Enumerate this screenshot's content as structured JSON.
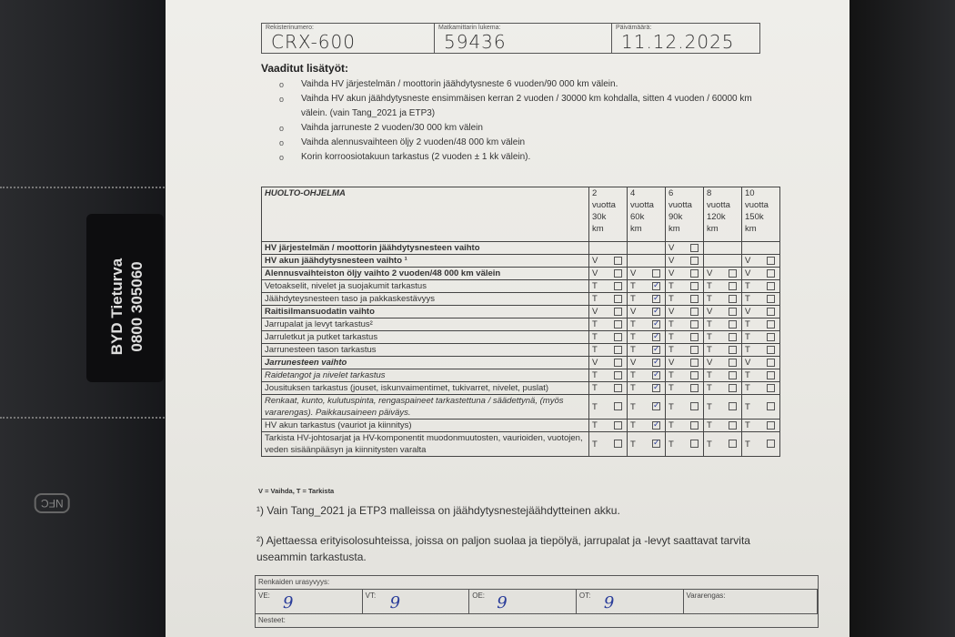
{
  "background": {
    "card": {
      "brand": "BYD Tieturva",
      "phone": "0800 305060"
    },
    "nfc_label": "NFC"
  },
  "header": {
    "reg": {
      "label": "Rekisterinumero:",
      "value": "CRX-600"
    },
    "odometer": {
      "label": "Matkamittarin lukema:",
      "value": "59436"
    },
    "date": {
      "label": "Päivämäärä:",
      "value": "11.12.2025"
    }
  },
  "required": {
    "title": "Vaaditut lisätyöt:",
    "items": [
      "Vaihda HV järjestelmän / moottorin jäähdytysneste 6 vuoden/90 000 km välein.",
      "Vaihda HV akun jäähdytysneste ensimmäisen kerran 2 vuoden / 30000 km kohdalla, sitten 4 vuoden / 60000 km välein. (vain Tang_2021 ja ETP3)",
      "Vaihda jarruneste 2 vuoden/30 000 km välein",
      "Vaihda alennusvaihteen öljy 2 vuoden/48 000 km välein",
      "Korin korroosiotakuun tarkastus (2 vuoden ± 1 kk välein)."
    ]
  },
  "program": {
    "title": "HUOLTO-OHJELMA",
    "columns": [
      [
        "2",
        "vuotta",
        "30k",
        "km"
      ],
      [
        "4",
        "vuotta",
        "60k",
        "km"
      ],
      [
        "6",
        "vuotta",
        "90k",
        "km"
      ],
      [
        "8",
        "vuotta",
        "120k",
        "km"
      ],
      [
        "10",
        "vuotta",
        "150k",
        "km"
      ]
    ],
    "rows": [
      {
        "label": "HV järjestelmän / moottorin jäähdytysnesteen vaihto",
        "bold": true,
        "codes": [
          "",
          "",
          "V",
          "",
          ""
        ],
        "checked": [
          false,
          false,
          false,
          false,
          false
        ]
      },
      {
        "label": "HV akun jäähdytysnesteen vaihto ¹",
        "bold": true,
        "codes": [
          "V",
          "",
          "V",
          "",
          "V"
        ],
        "checked": [
          false,
          false,
          false,
          false,
          false
        ]
      },
      {
        "label": "Alennusvaihteiston öljy vaihto 2 vuoden/48 000 km välein",
        "bold": true,
        "codes": [
          "V",
          "V",
          "V",
          "V",
          "V"
        ],
        "checked": [
          false,
          false,
          false,
          false,
          false
        ]
      },
      {
        "label": "Vetoakselit, nivelet ja suojakumit tarkastus",
        "codes": [
          "T",
          "T",
          "T",
          "T",
          "T"
        ],
        "checked": [
          false,
          true,
          false,
          false,
          false
        ]
      },
      {
        "label": "Jäähdyteysnesteen taso ja pakkaskestävyys",
        "codes": [
          "T",
          "T",
          "T",
          "T",
          "T"
        ],
        "checked": [
          false,
          true,
          false,
          false,
          false
        ]
      },
      {
        "label": "Raitisilmansuodatin vaihto",
        "bold": true,
        "codes": [
          "V",
          "V",
          "V",
          "V",
          "V"
        ],
        "checked": [
          false,
          true,
          false,
          false,
          false
        ]
      },
      {
        "label": "Jarrupalat ja levyt tarkastus²",
        "codes": [
          "T",
          "T",
          "T",
          "T",
          "T"
        ],
        "checked": [
          false,
          true,
          false,
          false,
          false
        ]
      },
      {
        "label": "Jarruletkut ja putket tarkastus",
        "codes": [
          "T",
          "T",
          "T",
          "T",
          "T"
        ],
        "checked": [
          false,
          true,
          false,
          false,
          false
        ]
      },
      {
        "label": "Jarrunesteen tason tarkastus",
        "codes": [
          "T",
          "T",
          "T",
          "T",
          "T"
        ],
        "checked": [
          false,
          true,
          false,
          false,
          false
        ]
      },
      {
        "label": "Jarrunesteen vaihto",
        "bold": true,
        "italic": true,
        "codes": [
          "V",
          "V",
          "V",
          "V",
          "V"
        ],
        "checked": [
          false,
          true,
          false,
          false,
          false
        ]
      },
      {
        "label": "Raidetangot ja nivelet tarkastus",
        "italic": true,
        "codes": [
          "T",
          "T",
          "T",
          "T",
          "T"
        ],
        "checked": [
          false,
          true,
          false,
          false,
          false
        ]
      },
      {
        "label": "Jousituksen tarkastus (jouset, iskunvaimentimet, tukivarret, nivelet, puslat)",
        "codes": [
          "T",
          "T",
          "T",
          "T",
          "T"
        ],
        "checked": [
          false,
          true,
          false,
          false,
          false
        ]
      },
      {
        "label": "Renkaat, kunto, kulutuspinta, rengaspaineet tarkastettuna / säädettynä, (myös vararengas). Paikkausaineen päiväys.",
        "italic": true,
        "codes": [
          "T",
          "T",
          "T",
          "T",
          "T"
        ],
        "checked": [
          false,
          true,
          false,
          false,
          false
        ]
      },
      {
        "label": "HV akun tarkastus (vauriot ja kiinnitys)",
        "codes": [
          "T",
          "T",
          "T",
          "T",
          "T"
        ],
        "checked": [
          false,
          true,
          false,
          false,
          false
        ]
      },
      {
        "label": "Tarkista HV-johtosarjat ja HV-komponentit muodonmuutosten, vaurioiden, vuotojen, veden sisäänpääsyn ja kiinnitysten varalta",
        "codes": [
          "T",
          "T",
          "T",
          "T",
          "T"
        ],
        "checked": [
          false,
          true,
          false,
          false,
          false
        ]
      }
    ],
    "legend": "V = Vaihda, T = Tarkista"
  },
  "footnotes": [
    "¹) Vain Tang_2021 ja ETP3 malleissa on jäähdytysnestejäähdytteinen akku.",
    "²) Ajettaessa erityisolosuhteissa, joissa on paljon suolaa ja tiepölyä, jarrupalat ja -levyt saattavat tarvita useammin tarkastusta."
  ],
  "tyres": {
    "title": "Renkaiden urasyvyys:",
    "fields": [
      {
        "label": "VE:",
        "value": "9"
      },
      {
        "label": "VT:",
        "value": "9"
      },
      {
        "label": "OE:",
        "value": "9"
      },
      {
        "label": "OT:",
        "value": "9"
      },
      {
        "label": "Vararengas:",
        "value": ""
      }
    ],
    "fluids_label": "Nesteet:"
  },
  "colors": {
    "ink": "#2a3d9a",
    "paper": "#eceae5"
  }
}
